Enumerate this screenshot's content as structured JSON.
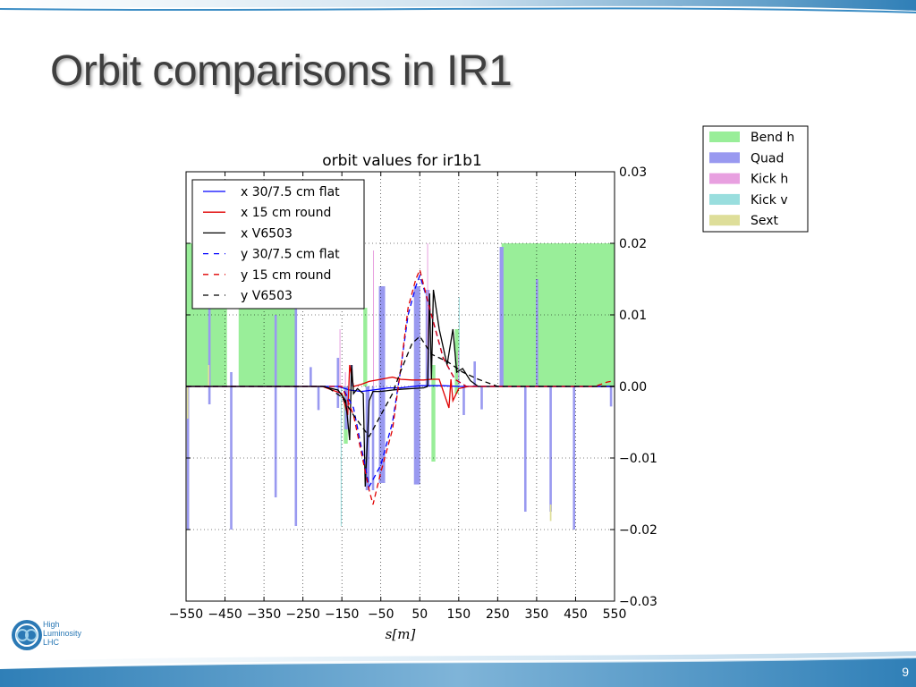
{
  "slide": {
    "title": "Orbit comparisons in IR1",
    "page_number": "9",
    "logo": {
      "line1": "High",
      "line2": "Luminosity",
      "line3": "LHC"
    },
    "colors": {
      "band": "#3a8cc4",
      "title": "#3f3f3f",
      "logo": "#2b79b5"
    }
  },
  "chart_data": {
    "type": "line",
    "title": "orbit values for ir1b1",
    "xlabel": "s[m]",
    "ylabel": "",
    "xlim": [
      -550,
      550
    ],
    "ylim": [
      -0.03,
      0.03
    ],
    "y_axis_side": "right",
    "grid": true,
    "xticks": [
      -550,
      -450,
      -350,
      -250,
      -150,
      -50,
      50,
      150,
      250,
      350,
      450,
      550
    ],
    "xtick_labels": [
      "−550",
      "−450",
      "−350",
      "−250",
      "−150",
      "−50",
      "50",
      "150",
      "250",
      "350",
      "450",
      "550"
    ],
    "yticks": [
      -0.03,
      -0.02,
      -0.01,
      0.0,
      0.01,
      0.02,
      0.03
    ],
    "ytick_labels": [
      "−0.03",
      "−0.02",
      "−0.01",
      "0.00",
      "0.01",
      "0.02",
      "0.03"
    ],
    "legend_placement": "upper-left",
    "series": [
      {
        "name": "x 30/7.5 cm flat",
        "color": "#0000ff",
        "dash": "solid",
        "x": [
          -550,
          -160,
          -130,
          -100,
          -70,
          -30,
          0,
          50,
          80,
          110,
          150,
          550
        ],
        "y": [
          0,
          0,
          -0.0005,
          -0.0007,
          -0.0005,
          -0.0002,
          -0.0002,
          0.0001,
          0.0001,
          0.0001,
          0,
          0
        ]
      },
      {
        "name": "x 15 cm round",
        "color": "#e00000",
        "dash": "solid",
        "x": [
          -550,
          -200,
          -150,
          -135,
          -130,
          -120,
          -100,
          -80,
          -50,
          -20,
          0,
          30,
          60,
          80,
          100,
          125,
          130,
          135,
          150,
          175,
          200,
          550
        ],
        "y": [
          0,
          0,
          -0.001,
          -0.004,
          0.003,
          0.0,
          0.0003,
          0.0007,
          0.001,
          0.0013,
          0.001,
          0.0009,
          0.0009,
          0.001,
          0.001,
          -0.003,
          0.001,
          -0.002,
          -0.0003,
          0,
          0,
          0
        ]
      },
      {
        "name": "x V6503",
        "color": "#000000",
        "dash": "solid",
        "x": [
          -550,
          -200,
          -160,
          -140,
          -130,
          -125,
          -120,
          -110,
          -95,
          -90,
          -80,
          -70,
          -50,
          -20,
          0,
          30,
          60,
          70,
          75,
          80,
          85,
          100,
          120,
          135,
          145,
          160,
          180,
          200,
          550
        ],
        "y": [
          0,
          0,
          -0.0005,
          -0.002,
          -0.0075,
          0.003,
          -0.001,
          -0.0003,
          -0.001,
          -0.014,
          -0.002,
          -0.0007,
          -0.0007,
          -0.0005,
          -0.0004,
          -0.0003,
          -0.0002,
          0.0,
          0.013,
          0.001,
          0.0135,
          0.008,
          0.003,
          0.008,
          0.002,
          0.0025,
          0.0008,
          0.0,
          0
        ]
      },
      {
        "name": "y 30/7.5 cm flat",
        "color": "#0000ff",
        "dash": "dashed",
        "x": [
          -550,
          -150,
          -120,
          -80,
          -50,
          -20,
          0,
          20,
          40,
          50,
          70,
          90,
          110,
          140,
          170,
          550
        ],
        "y": [
          0,
          0,
          -0.003,
          -0.014,
          -0.011,
          -0.005,
          0.002,
          0.01,
          0.014,
          0.0155,
          0.012,
          0.008,
          0.004,
          0.001,
          0,
          0
        ]
      },
      {
        "name": "y 15 cm round",
        "color": "#e00000",
        "dash": "dashed",
        "x": [
          -550,
          -150,
          -120,
          -80,
          -70,
          -50,
          -20,
          0,
          20,
          40,
          50,
          70,
          90,
          110,
          140,
          170,
          500,
          530,
          550
        ],
        "y": [
          0,
          0,
          -0.004,
          -0.0145,
          -0.0165,
          -0.012,
          -0.006,
          0.002,
          0.011,
          0.015,
          0.0163,
          0.012,
          0.008,
          0.004,
          0.001,
          0,
          0,
          0.0006,
          0.0008
        ]
      },
      {
        "name": "y V6503",
        "color": "#000000",
        "dash": "dashed",
        "x": [
          -550,
          -190,
          -150,
          -120,
          -80,
          -50,
          -20,
          0,
          30,
          50,
          80,
          120,
          160,
          200,
          250,
          550
        ],
        "y": [
          0,
          0,
          -0.0015,
          -0.004,
          -0.007,
          -0.004,
          -0.001,
          0.002,
          0.006,
          0.007,
          0.0045,
          0.0035,
          0.002,
          0.001,
          0,
          0
        ]
      }
    ],
    "elements_legend": [
      {
        "name": "Bend h",
        "color": "#99ee99"
      },
      {
        "name": "Quad",
        "color": "#9999f0"
      },
      {
        "name": "Kick h",
        "color": "#e8a0e0"
      },
      {
        "name": "Kick v",
        "color": "#99dede"
      },
      {
        "name": "Sext",
        "color": "#dede99"
      }
    ],
    "elements": [
      {
        "type": "Bend h",
        "x0": -550,
        "x1": -445,
        "y0": 0,
        "y1": 0.02
      },
      {
        "type": "Bend h",
        "x0": -415,
        "x1": -270,
        "y0": 0,
        "y1": 0.02
      },
      {
        "type": "Bend h",
        "x0": 260,
        "x1": 550,
        "y0": 0,
        "y1": 0.02
      },
      {
        "type": "Bend h",
        "x0": -145,
        "x1": -135,
        "y0": -0.008,
        "y1": 0
      },
      {
        "type": "Bend h",
        "x0": -95,
        "x1": -85,
        "y0": 0,
        "y1": 0.011
      },
      {
        "type": "Bend h",
        "x0": 80,
        "x1": 90,
        "y0": -0.0105,
        "y1": 0.003
      },
      {
        "type": "Bend h",
        "x0": 140,
        "x1": 150,
        "y0": -0.001,
        "y1": 0.008
      },
      {
        "type": "Quad",
        "x0": -548,
        "x1": -542,
        "y0": -0.02,
        "y1": 0
      },
      {
        "type": "Quad",
        "x0": -493,
        "x1": -487,
        "y0": -0.0025,
        "y1": 0.016
      },
      {
        "type": "Quad",
        "x0": -437,
        "x1": -431,
        "y0": -0.02,
        "y1": 0.002
      },
      {
        "type": "Quad",
        "x0": -323,
        "x1": -317,
        "y0": -0.0155,
        "y1": 0.01
      },
      {
        "type": "Quad",
        "x0": -271,
        "x1": -265,
        "y0": -0.0195,
        "y1": 0.0115
      },
      {
        "type": "Quad",
        "x0": -233,
        "x1": -227,
        "y0": 0,
        "y1": 0.0027
      },
      {
        "type": "Quad",
        "x0": -213,
        "x1": -207,
        "y0": -0.0033,
        "y1": 0
      },
      {
        "type": "Quad",
        "x0": -163,
        "x1": -157,
        "y0": -0.003,
        "y1": 0.004
      },
      {
        "type": "Quad",
        "x0": -143,
        "x1": -133,
        "y0": -0.006,
        "y1": 0
      },
      {
        "type": "Quad",
        "x0": -128,
        "x1": -122,
        "y0": 0,
        "y1": 0.003
      },
      {
        "type": "Quad",
        "x0": -89,
        "x1": -79,
        "y0": -0.0145,
        "y1": 0
      },
      {
        "type": "Quad",
        "x0": -73,
        "x1": -67,
        "y0": -0.0145,
        "y1": 0
      },
      {
        "type": "Quad",
        "x0": -55,
        "x1": -39,
        "y0": -0.0135,
        "y1": 0.014
      },
      {
        "type": "Quad",
        "x0": 35,
        "x1": 51,
        "y0": -0.0137,
        "y1": 0.014
      },
      {
        "type": "Quad",
        "x0": 65,
        "x1": 75,
        "y0": 0,
        "y1": 0.0135
      },
      {
        "type": "Quad",
        "x0": 160,
        "x1": 166,
        "y0": -0.004,
        "y1": 0
      },
      {
        "type": "Quad",
        "x0": 188,
        "x1": 194,
        "y0": 0,
        "y1": 0.0035
      },
      {
        "type": "Quad",
        "x0": 206,
        "x1": 212,
        "y0": -0.0032,
        "y1": 0
      },
      {
        "type": "Quad",
        "x0": 255,
        "x1": 265,
        "y0": 0,
        "y1": 0.0195
      },
      {
        "type": "Quad",
        "x0": 318,
        "x1": 324,
        "y0": -0.0175,
        "y1": 0
      },
      {
        "type": "Quad",
        "x0": 348,
        "x1": 354,
        "y0": 0,
        "y1": 0.015
      },
      {
        "type": "Quad",
        "x0": 383,
        "x1": 389,
        "y0": -0.0175,
        "y1": 0
      },
      {
        "type": "Quad",
        "x0": 443,
        "x1": 449,
        "y0": -0.02,
        "y1": 0
      },
      {
        "type": "Quad",
        "x0": 538,
        "x1": 544,
        "y0": -0.0028,
        "y1": 0
      },
      {
        "type": "Kick h",
        "x0": -156,
        "x1": -154,
        "y0": 0,
        "y1": 0.008
      },
      {
        "type": "Kick h",
        "x0": -142,
        "x1": -140,
        "y0": 0,
        "y1": 0.002
      },
      {
        "type": "Kick h",
        "x0": -70,
        "x1": -68,
        "y0": 0,
        "y1": 0.019
      },
      {
        "type": "Kick h",
        "x0": 69,
        "x1": 71,
        "y0": 0,
        "y1": 0.02
      },
      {
        "type": "Kick h",
        "x0": 148,
        "x1": 150,
        "y0": 0,
        "y1": 0.005
      },
      {
        "type": "Kick v",
        "x0": -153,
        "x1": -151,
        "y0": -0.0195,
        "y1": 0
      },
      {
        "type": "Kick v",
        "x0": 150,
        "x1": 152,
        "y0": 0,
        "y1": 0.0125
      },
      {
        "type": "Sext",
        "x0": -548,
        "x1": -544,
        "y0": -0.0045,
        "y1": 0
      },
      {
        "type": "Sext",
        "x0": -494,
        "x1": -490,
        "y0": 0,
        "y1": 0.003
      },
      {
        "type": "Sext",
        "x0": 384,
        "x1": 388,
        "y0": -0.0188,
        "y1": -0.0165
      }
    ]
  }
}
